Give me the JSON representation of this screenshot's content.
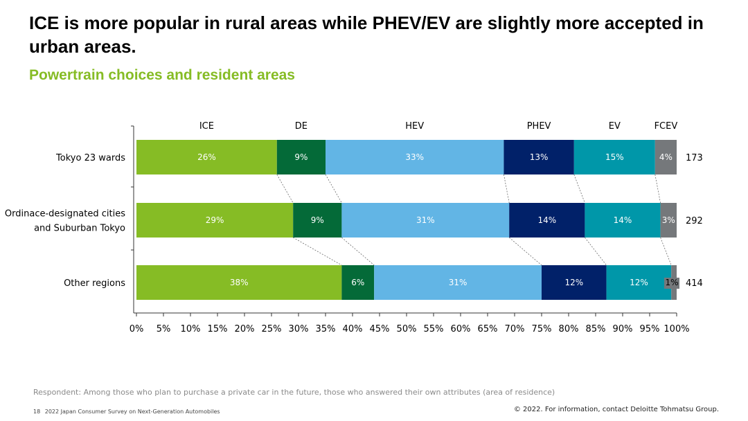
{
  "slide": {
    "title": "ICE is more popular in rural areas while PHEV/EV are slightly more accepted in urban areas.",
    "subtitle": "Powertrain choices and resident areas",
    "footnote": "Respondent: Among those who plan to purchase a private car in the future, those who answered their own attributes (area of residence)",
    "page_number": "18",
    "report_name": "2022 Japan Consumer Survey on Next-Generation Automobiles",
    "copyright": "© 2022. For information, contact Deloitte Tohmatsu Group."
  },
  "chart_data": {
    "type": "bar",
    "orientation": "horizontal",
    "stacked": true,
    "categories": [
      "Tokyo 23 wards",
      "Ordinace-designated cities and Suburban Tokyo",
      "Other regions"
    ],
    "category_lines": [
      [
        "Tokyo 23 wards"
      ],
      [
        "Ordinace-designated cities",
        "and Suburban Tokyo"
      ],
      [
        "Other regions"
      ]
    ],
    "sample_sizes": [
      173,
      292,
      414
    ],
    "series": [
      {
        "name": "ICE",
        "color": "#86BC25",
        "values": [
          26,
          29,
          38
        ],
        "labels": [
          "26%",
          "29%",
          "38%"
        ]
      },
      {
        "name": "DE",
        "color": "#046A38",
        "values": [
          9,
          9,
          6
        ],
        "labels": [
          "9%",
          "9%",
          "6%"
        ]
      },
      {
        "name": "HEV",
        "color": "#62B5E5",
        "values": [
          33,
          31,
          31
        ],
        "labels": [
          "33%",
          "31%",
          "31%"
        ]
      },
      {
        "name": "PHEV",
        "color": "#012169",
        "values": [
          13,
          14,
          12
        ],
        "labels": [
          "13%",
          "14%",
          "12%"
        ]
      },
      {
        "name": "EV",
        "color": "#0097A9",
        "values": [
          15,
          14,
          12
        ],
        "labels": [
          "15%",
          "14%",
          "12%"
        ]
      },
      {
        "name": "FCEV",
        "color": "#75787B",
        "values": [
          4,
          3,
          1
        ],
        "labels": [
          "4%",
          "3%",
          "1%"
        ]
      }
    ],
    "xlim": [
      0,
      100
    ],
    "x_ticks": [
      "0%",
      "5%",
      "10%",
      "15%",
      "20%",
      "25%",
      "30%",
      "35%",
      "40%",
      "45%",
      "50%",
      "55%",
      "60%",
      "65%",
      "70%",
      "75%",
      "80%",
      "85%",
      "90%",
      "95%",
      "100%"
    ],
    "legend_position": "top",
    "series_lines": "dashed connectors between bars",
    "grid": false
  }
}
